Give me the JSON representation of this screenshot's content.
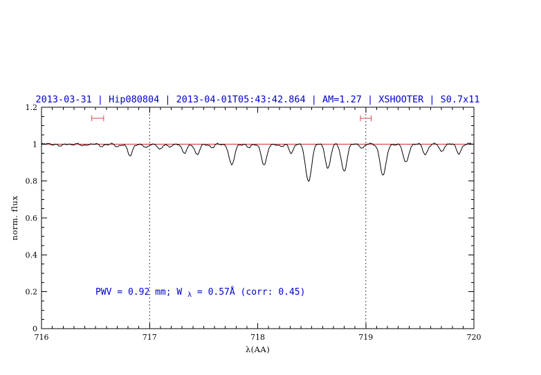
{
  "title": "2013-03-31 | Hip080804 | 2013-04-01T05:43:42.864 | AM=1.27 | XSHOOTER | S0.7x11",
  "annotation": {
    "pre": "PWV = 0.92 mm; W",
    "sub": "λ",
    "post": " = 0.57Å (corr: 0.45)"
  },
  "colors": {
    "title": "#0000cd",
    "annotation": "#0000cd",
    "spectrum": "#000000",
    "continuum": "#cd2626",
    "markers": "#cd4a4a",
    "frame": "#000000"
  },
  "chart_data": {
    "type": "line",
    "title": "2013-03-31 | Hip080804 | 2013-04-01T05:43:42.864 | AM=1.27 | XSHOOTER | S0.7x11",
    "xlabel": "λ(AA)",
    "ylabel": "norm. flux",
    "xlim": [
      716,
      720
    ],
    "ylim": [
      0,
      1.2
    ],
    "grid": false,
    "xticks": {
      "values": [
        716,
        717,
        718,
        719,
        720
      ],
      "labels": [
        "716",
        "717",
        "718",
        "719",
        "720"
      ]
    },
    "yticks": {
      "values": [
        0,
        0.2,
        0.4,
        0.6,
        0.8,
        1.0,
        1.2
      ],
      "labels": [
        "0",
        "0.2",
        "0.4",
        "0.6",
        "0.8",
        "1",
        "1.2"
      ]
    },
    "x_minor_step": 0.1,
    "y_minor_step": 0.05,
    "dotted_vlines": [
      717,
      719
    ],
    "continuum_level": 1.0,
    "marker_y": 1.14,
    "marker_cap_half_height": 0.016,
    "telluric_band_markers": [
      {
        "x_center": 716.52,
        "half_width": 0.055
      },
      {
        "x_center": 719.0,
        "half_width": 0.05
      }
    ],
    "sample_step": 0.004,
    "noise_components": [
      {
        "a": 0.003,
        "f": 40,
        "p": 0
      },
      {
        "a": 0.0025,
        "f": 97,
        "p": 1.3
      },
      {
        "a": 0.0015,
        "f": 263,
        "p": 0.7
      }
    ],
    "absorption_lines": [
      {
        "c": 716.18,
        "d": 0.012,
        "w": 0.018
      },
      {
        "c": 716.38,
        "d": 0.01,
        "w": 0.018
      },
      {
        "c": 716.55,
        "d": 0.012,
        "w": 0.02
      },
      {
        "c": 716.7,
        "d": 0.015,
        "w": 0.02
      },
      {
        "c": 716.82,
        "d": 0.065,
        "w": 0.022
      },
      {
        "c": 716.97,
        "d": 0.022,
        "w": 0.02
      },
      {
        "c": 717.1,
        "d": 0.028,
        "w": 0.02
      },
      {
        "c": 717.18,
        "d": 0.015,
        "w": 0.018
      },
      {
        "c": 717.32,
        "d": 0.05,
        "w": 0.022
      },
      {
        "c": 717.44,
        "d": 0.06,
        "w": 0.022
      },
      {
        "c": 717.58,
        "d": 0.02,
        "w": 0.02
      },
      {
        "c": 717.76,
        "d": 0.115,
        "w": 0.025
      },
      {
        "c": 717.92,
        "d": 0.02,
        "w": 0.02
      },
      {
        "c": 718.06,
        "d": 0.115,
        "w": 0.025
      },
      {
        "c": 718.22,
        "d": 0.015,
        "w": 0.02
      },
      {
        "c": 718.31,
        "d": 0.045,
        "w": 0.02
      },
      {
        "c": 718.47,
        "d": 0.2,
        "w": 0.028
      },
      {
        "c": 718.65,
        "d": 0.13,
        "w": 0.024
      },
      {
        "c": 718.8,
        "d": 0.145,
        "w": 0.026
      },
      {
        "c": 718.97,
        "d": 0.02,
        "w": 0.02
      },
      {
        "c": 719.16,
        "d": 0.17,
        "w": 0.028
      },
      {
        "c": 719.37,
        "d": 0.1,
        "w": 0.025
      },
      {
        "c": 719.55,
        "d": 0.055,
        "w": 0.022
      },
      {
        "c": 719.7,
        "d": 0.04,
        "w": 0.02
      },
      {
        "c": 719.86,
        "d": 0.05,
        "w": 0.022
      }
    ]
  }
}
